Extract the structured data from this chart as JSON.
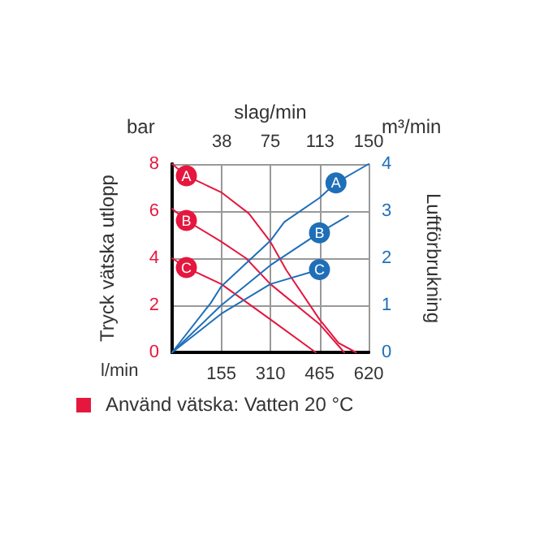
{
  "chart_data": {
    "type": "line",
    "xlabel": "l/min",
    "x2label": "slag/min",
    "ylabel": "Tryck vätska utlopp",
    "y2label": "Luftförbrukning",
    "annotations": [
      "bar",
      "m³/min",
      "Använd vätska: Vatten 20 °C"
    ],
    "xlim": [
      0,
      620
    ],
    "xticks": [
      155,
      310,
      465,
      620
    ],
    "x2lim": [
      0,
      150
    ],
    "x2ticks": [
      38,
      75,
      113,
      150
    ],
    "ylim": [
      0,
      8
    ],
    "yticks": [
      0,
      2,
      4,
      6,
      8
    ],
    "y2lim": [
      0,
      4
    ],
    "y2ticks": [
      0,
      1,
      2,
      3,
      4
    ],
    "grid": true,
    "marker": "none",
    "line_style": "solid",
    "series": [
      {
        "name": "A",
        "color": "#e5173f",
        "x": [
          0,
          45,
          155,
          242,
          310,
          360,
          465,
          525,
          580
        ],
        "values": [
          8,
          7.5,
          6.8,
          5.9,
          4.7,
          3.5,
          1.4,
          0.4,
          0
        ]
      },
      {
        "name": "B",
        "color": "#e5173f",
        "x": [
          0,
          45,
          155,
          233,
          310,
          465,
          543
        ],
        "values": [
          6.1,
          5.6,
          4.7,
          4.0,
          2.9,
          1.2,
          0
        ]
      },
      {
        "name": "C",
        "color": "#e5173f",
        "x": [
          0,
          45,
          155,
          310,
          453
        ],
        "values": [
          4.0,
          3.6,
          2.9,
          1.4,
          0
        ]
      },
      {
        "name": "A",
        "color": "#1f6fb8",
        "axis": "y2",
        "x": [
          0,
          122,
          155,
          310,
          354,
          465,
          517,
          620
        ],
        "values": [
          0,
          1.05,
          1.4,
          2.37,
          2.77,
          3.28,
          3.6,
          4.0
        ]
      },
      {
        "name": "B",
        "color": "#1f6fb8",
        "axis": "y2",
        "x": [
          0,
          155,
          310,
          465,
          555
        ],
        "values": [
          0,
          1.0,
          1.85,
          2.54,
          2.9
        ]
      },
      {
        "name": "C",
        "color": "#1f6fb8",
        "axis": "y2",
        "x": [
          0,
          155,
          310,
          465,
          469
        ],
        "values": [
          0,
          0.82,
          1.45,
          1.76,
          1.8
        ]
      }
    ]
  }
}
